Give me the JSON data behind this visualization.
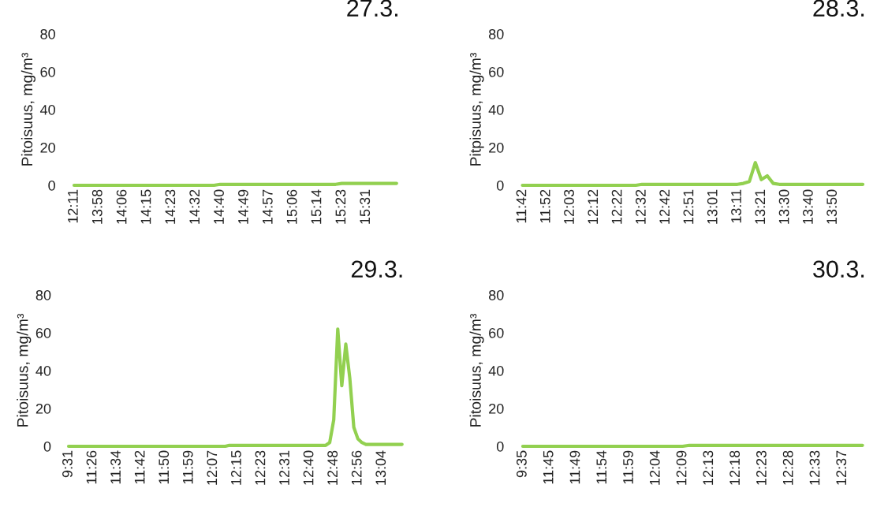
{
  "chart_data": [
    {
      "type": "line",
      "title": "27.3.",
      "ylabel": "Pitoisuus, mg/m³",
      "ylim": [
        0,
        80
      ],
      "yticks": [
        0,
        20,
        40,
        60,
        80
      ],
      "categories": [
        "12:11",
        null,
        null,
        null,
        "13:58",
        null,
        null,
        null,
        "14:06",
        null,
        null,
        null,
        "14:15",
        null,
        null,
        null,
        "14:23",
        null,
        null,
        null,
        "14:32",
        null,
        null,
        null,
        "14:40",
        null,
        null,
        null,
        "14:49",
        null,
        null,
        null,
        "14:57",
        null,
        null,
        null,
        "15:06",
        null,
        null,
        null,
        "15:14",
        null,
        null,
        null,
        "15:23",
        null,
        null,
        null,
        "15:31",
        null,
        null,
        null,
        null,
        null
      ],
      "series": [
        {
          "color": "#92d050",
          "values": [
            0,
            0,
            0,
            0,
            0,
            0,
            0,
            0,
            0,
            0,
            0,
            0,
            0,
            0,
            0,
            0,
            0,
            0,
            0,
            0,
            0,
            0,
            0,
            0,
            0.5,
            0.5,
            0.5,
            0.5,
            0.5,
            0.5,
            0.5,
            0.5,
            0.5,
            0.5,
            0.5,
            0.5,
            0.5,
            0.5,
            0.5,
            0.5,
            0.5,
            0.5,
            0.5,
            0.5,
            1,
            1,
            1,
            1,
            1,
            1,
            1,
            1,
            1,
            1
          ]
        }
      ]
    },
    {
      "type": "line",
      "title": "28.3.",
      "ylabel": "Pitpisuus, mg/m³",
      "ylim": [
        0,
        80
      ],
      "yticks": [
        0,
        20,
        40,
        60,
        80
      ],
      "categories": [
        "11:42",
        null,
        null,
        null,
        "11:52",
        null,
        null,
        null,
        "12:03",
        null,
        null,
        null,
        "12:12",
        null,
        null,
        null,
        "12:22",
        null,
        null,
        null,
        "12:32",
        null,
        null,
        null,
        "12:42",
        null,
        null,
        null,
        "12:51",
        null,
        null,
        null,
        "13:01",
        null,
        null,
        null,
        "13:11",
        null,
        null,
        null,
        "13:21",
        null,
        null,
        null,
        "13:30",
        null,
        null,
        null,
        "13:40",
        null,
        null,
        null,
        "13:50",
        null,
        null,
        null,
        null,
        null
      ],
      "series": [
        {
          "color": "#92d050",
          "values": [
            0,
            0,
            0,
            0,
            0,
            0,
            0,
            0,
            0,
            0,
            0,
            0,
            0,
            0,
            0,
            0,
            0,
            0,
            0,
            0,
            0.5,
            0.5,
            0.5,
            0.5,
            0.5,
            0.5,
            0.5,
            0.5,
            0.5,
            0.5,
            0.5,
            0.5,
            0.5,
            0.5,
            0.5,
            0.5,
            0.5,
            1,
            2,
            12,
            3,
            5,
            1,
            0.5,
            0.5,
            0.5,
            0.5,
            0.5,
            0.5,
            0.5,
            0.5,
            0.5,
            0.5,
            0.5,
            0.5,
            0.5,
            0.5,
            0.5
          ]
        }
      ]
    },
    {
      "type": "line",
      "title": "29.3.",
      "ylabel": "Pitoisuus, mg/m³",
      "ylim": [
        0,
        80
      ],
      "yticks": [
        0,
        20,
        40,
        60,
        80
      ],
      "categories": [
        "9:31",
        null,
        null,
        null,
        null,
        null,
        "11:26",
        null,
        null,
        null,
        null,
        null,
        "11:34",
        null,
        null,
        null,
        null,
        null,
        "11:42",
        null,
        null,
        null,
        null,
        null,
        "11:50",
        null,
        null,
        null,
        null,
        null,
        "11:59",
        null,
        null,
        null,
        null,
        null,
        "12:07",
        null,
        null,
        null,
        null,
        null,
        "12:15",
        null,
        null,
        null,
        null,
        null,
        "12:23",
        null,
        null,
        null,
        null,
        null,
        "12:31",
        null,
        null,
        null,
        null,
        null,
        "12:40",
        null,
        null,
        null,
        null,
        null,
        "12:48",
        null,
        null,
        null,
        null,
        null,
        "12:56",
        null,
        null,
        null,
        null,
        null,
        "13:04",
        null,
        null,
        null,
        null,
        null
      ],
      "series": [
        {
          "color": "#92d050",
          "values": [
            0,
            0,
            0,
            0,
            0,
            0,
            0,
            0,
            0,
            0,
            0,
            0,
            0,
            0,
            0,
            0,
            0,
            0,
            0,
            0,
            0,
            0,
            0,
            0,
            0,
            0,
            0,
            0,
            0,
            0,
            0,
            0,
            0,
            0,
            0,
            0,
            0,
            0,
            0,
            0,
            0.5,
            0.5,
            0.5,
            0.5,
            0.5,
            0.5,
            0.5,
            0.5,
            0.5,
            0.5,
            0.5,
            0.5,
            0.5,
            0.5,
            0.5,
            0.5,
            0.5,
            0.5,
            0.5,
            0.5,
            0.5,
            0.5,
            0.5,
            0.5,
            0.5,
            2,
            14,
            62,
            32,
            54,
            36,
            10,
            4,
            2,
            1,
            1,
            1,
            1,
            1,
            1,
            1,
            1,
            1,
            1
          ]
        }
      ]
    },
    {
      "type": "line",
      "title": "30.3.",
      "ylabel": "Pitoisuus, mg/m³",
      "ylim": [
        0,
        80
      ],
      "yticks": [
        0,
        20,
        40,
        60,
        80
      ],
      "categories": [
        "9:35",
        null,
        null,
        null,
        "11:45",
        null,
        null,
        null,
        "11:49",
        null,
        null,
        null,
        "11:54",
        null,
        null,
        null,
        "11:59",
        null,
        null,
        null,
        "12:04",
        null,
        null,
        null,
        "12:09",
        null,
        null,
        null,
        "12:13",
        null,
        null,
        null,
        "12:18",
        null,
        null,
        null,
        "12:23",
        null,
        null,
        null,
        "12:28",
        null,
        null,
        null,
        "12:33",
        null,
        null,
        null,
        "12:37",
        null,
        null,
        null
      ],
      "series": [
        {
          "color": "#92d050",
          "values": [
            0,
            0,
            0,
            0,
            0,
            0,
            0,
            0,
            0,
            0,
            0,
            0,
            0,
            0,
            0,
            0,
            0,
            0,
            0,
            0,
            0,
            0,
            0,
            0,
            0,
            0.5,
            0.5,
            0.5,
            0.5,
            0.5,
            0.5,
            0.5,
            0.5,
            0.5,
            0.5,
            0.5,
            0.5,
            0.5,
            0.5,
            0.5,
            0.5,
            0.5,
            0.5,
            0.5,
            0.5,
            0.5,
            0.5,
            0.5,
            0.5,
            0.5,
            0.5,
            0.5
          ]
        }
      ]
    }
  ]
}
